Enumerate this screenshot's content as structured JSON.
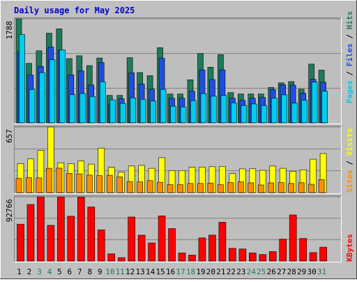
{
  "chart_data": [
    {
      "type": "bar",
      "title": "Daily usage for May 2025",
      "categories": [
        "1",
        "2",
        "3",
        "4",
        "5",
        "6",
        "7",
        "8",
        "9",
        "10",
        "11",
        "12",
        "13",
        "14",
        "15",
        "16",
        "17",
        "18",
        "19",
        "20",
        "21",
        "22",
        "23",
        "24",
        "25",
        "26",
        "27",
        "28",
        "29",
        "30",
        "31"
      ],
      "weekend_days": [
        "3",
        "4",
        "10",
        "11",
        "17",
        "18",
        "24",
        "25",
        "31"
      ],
      "ymax_label": "1788",
      "ymax": 1788,
      "series": [
        {
          "name": "Hits",
          "color": "#1f7a5a",
          "values": [
            1788,
            1023,
            1239,
            1541,
            1616,
            1104,
            1153,
            984,
            1115,
            472,
            472,
            1121,
            865,
            811,
            1292,
            496,
            496,
            740,
            1191,
            956,
            1173,
            521,
            497,
            497,
            496,
            609,
            687,
            709,
            578,
            1010,
            906
          ]
        },
        {
          "name": "Files",
          "color": "#1f4fe0",
          "values": [
            1229,
            822,
            970,
            1304,
            1253,
            824,
            893,
            649,
            1035,
            325,
            414,
            860,
            669,
            578,
            1110,
            422,
            423,
            543,
            910,
            744,
            910,
            424,
            387,
            424,
            436,
            573,
            654,
            648,
            509,
            748,
            699
          ]
        },
        {
          "name": "Pages",
          "color": "#00ccee",
          "values": [
            1521,
            573,
            862,
            1083,
            1254,
            485,
            504,
            452,
            706,
            396,
            334,
            430,
            405,
            375,
            575,
            287,
            274,
            383,
            503,
            458,
            473,
            343,
            298,
            325,
            299,
            425,
            482,
            341,
            391,
            700,
            544
          ]
        }
      ]
    },
    {
      "type": "bar",
      "ymax_label": "657",
      "ymax": 657,
      "series": [
        {
          "name": "Visits",
          "color": "#ffff00",
          "values": [
            290,
            338,
            424,
            657,
            299,
            290,
            317,
            286,
            446,
            254,
            205,
            267,
            273,
            244,
            350,
            221,
            221,
            254,
            256,
            260,
            263,
            191,
            238,
            239,
            224,
            267,
            244,
            214,
            229,
            335,
            392
          ]
        },
        {
          "name": "Sites",
          "color": "#ff8c00",
          "values": [
            142,
            150,
            148,
            244,
            245,
            193,
            188,
            175,
            170,
            174,
            157,
            111,
            108,
            120,
            104,
            80,
            80,
            92,
            92,
            96,
            80,
            101,
            108,
            98,
            77,
            98,
            100,
            92,
            99,
            84,
            130
          ]
        }
      ]
    },
    {
      "type": "bar",
      "ymax_label": "92766",
      "ymax": 92766,
      "series": [
        {
          "name": "KBytes",
          "color": "#ff0000",
          "values": [
            53300,
            81700,
            92700,
            51600,
            92600,
            64800,
            92300,
            78100,
            45100,
            10400,
            5000,
            63600,
            37400,
            26200,
            65300,
            46900,
            11700,
            8600,
            33500,
            37500,
            56100,
            18400,
            17400,
            11700,
            9500,
            13700,
            31700,
            66600,
            32700,
            12200,
            20100
          ]
        }
      ]
    }
  ]
}
